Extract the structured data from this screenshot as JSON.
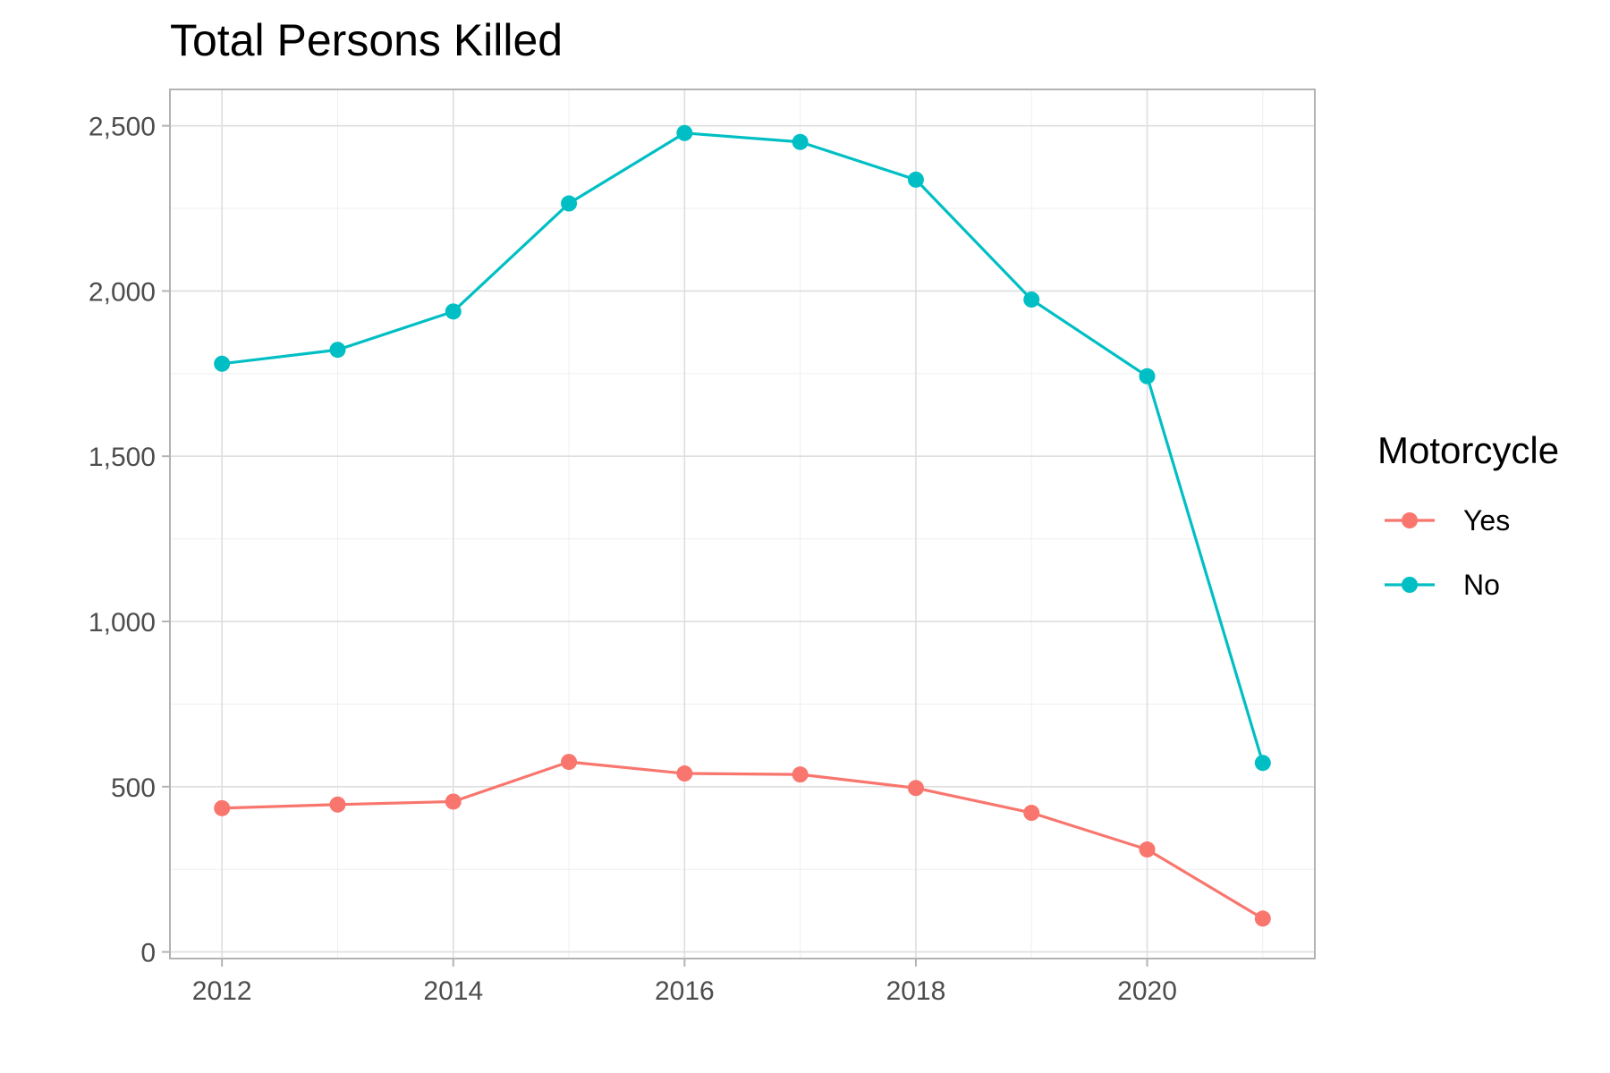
{
  "chart_data": {
    "type": "line",
    "title": "Total Persons Killed",
    "xlabel": "",
    "ylabel": "",
    "x": [
      2012,
      2013,
      2014,
      2015,
      2016,
      2017,
      2018,
      2019,
      2020,
      2021
    ],
    "xlim": [
      2011.55,
      2021.45
    ],
    "ylim": [
      -20,
      2610
    ],
    "x_ticks": [
      2012,
      2014,
      2016,
      2018,
      2020
    ],
    "x_tick_labels": [
      "2012",
      "2014",
      "2016",
      "2018",
      "2020"
    ],
    "y_ticks": [
      0,
      500,
      1000,
      1500,
      2000,
      2500
    ],
    "y_tick_labels": [
      "0",
      "500",
      "1,000",
      "1,500",
      "2,000",
      "2,500"
    ],
    "grid": true,
    "legend": {
      "title": "Motorcycle",
      "position": "right"
    },
    "series": [
      {
        "name": "Yes",
        "color": "#F8766D",
        "values": [
          435,
          446,
          455,
          575,
          540,
          537,
          496,
          421,
          310,
          101
        ]
      },
      {
        "name": "No",
        "color": "#00BFC4",
        "values": [
          1780,
          1822,
          1938,
          2265,
          2478,
          2451,
          2337,
          1974,
          1742,
          572
        ]
      }
    ]
  }
}
